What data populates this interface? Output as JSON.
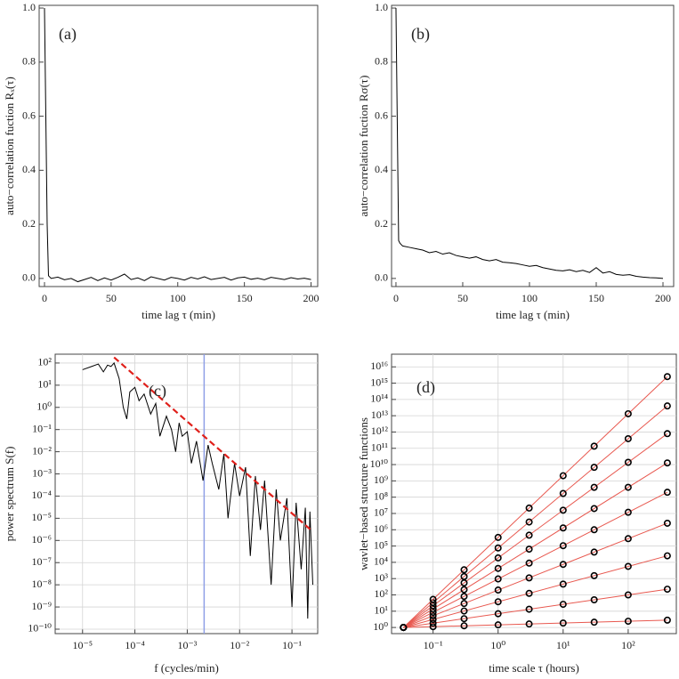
{
  "chart_data": [
    {
      "type": "line",
      "label": "(a)",
      "xlabel": "time lag τ (min)",
      "ylabel": "auto−correlation fuction Rₓ(τ)",
      "xscale": "linear",
      "yscale": "linear",
      "grid": false,
      "xlim": [
        -4,
        205
      ],
      "ylim": [
        -0.03,
        1.01
      ],
      "xticks": [
        0,
        50,
        100,
        150,
        200
      ],
      "yticks": [
        {
          "value": 0,
          "label": "0.0"
        },
        {
          "value": 0.2,
          "label": "0.2"
        },
        {
          "value": 0.4,
          "label": "0.4"
        },
        {
          "value": 0.6,
          "label": "0.6"
        },
        {
          "value": 0.8,
          "label": "0.8"
        },
        {
          "value": 1,
          "label": "1.0"
        }
      ],
      "series": [
        {
          "color": "#000000",
          "x": [
            0,
            2,
            3,
            5,
            10,
            15,
            20,
            25,
            30,
            35,
            40,
            45,
            50,
            55,
            60,
            65,
            70,
            75,
            80,
            85,
            90,
            95,
            100,
            105,
            110,
            115,
            120,
            125,
            130,
            135,
            140,
            145,
            150,
            155,
            160,
            165,
            170,
            175,
            180,
            185,
            190,
            195,
            200
          ],
          "values": [
            1.0,
            0.2,
            0.01,
            0.0,
            0.005,
            -0.005,
            0.0,
            -0.012,
            -0.004,
            0.004,
            -0.008,
            0.002,
            -0.006,
            0.004,
            0.016,
            -0.004,
            0.002,
            -0.008,
            0.006,
            0.0,
            -0.006,
            0.004,
            0.0,
            -0.006,
            0.004,
            -0.002,
            0.006,
            -0.004,
            0.0,
            0.004,
            -0.006,
            0.002,
            0.005,
            -0.003,
            0.001,
            -0.005,
            0.004,
            0.0,
            -0.004,
            0.003,
            -0.002,
            0.001,
            -0.004
          ]
        }
      ]
    },
    {
      "type": "line",
      "label": "(b)",
      "xlabel": "time lag τ (min)",
      "ylabel": "auto−correlation fuction Rσ(τ)",
      "xscale": "linear",
      "yscale": "linear",
      "grid": false,
      "xlim": [
        -3.3,
        208
      ],
      "ylim": [
        -0.03,
        1.01
      ],
      "xticks": [
        0,
        50,
        100,
        150,
        200
      ],
      "yticks": [
        {
          "value": 0,
          "label": "0.0"
        },
        {
          "value": 0.2,
          "label": "0.2"
        },
        {
          "value": 0.4,
          "label": "0.4"
        },
        {
          "value": 0.6,
          "label": "0.6"
        },
        {
          "value": 0.8,
          "label": "0.8"
        },
        {
          "value": 1,
          "label": "1.0"
        }
      ],
      "series": [
        {
          "color": "#000000",
          "x": [
            0,
            2,
            3,
            5,
            10,
            15,
            20,
            25,
            30,
            35,
            40,
            45,
            50,
            55,
            60,
            65,
            70,
            75,
            80,
            85,
            90,
            95,
            100,
            105,
            110,
            115,
            120,
            125,
            130,
            135,
            140,
            145,
            150,
            155,
            160,
            165,
            170,
            175,
            180,
            185,
            190,
            195,
            200
          ],
          "values": [
            1.0,
            0.14,
            0.13,
            0.12,
            0.115,
            0.11,
            0.105,
            0.095,
            0.1,
            0.09,
            0.095,
            0.085,
            0.08,
            0.075,
            0.08,
            0.07,
            0.065,
            0.07,
            0.06,
            0.058,
            0.055,
            0.05,
            0.045,
            0.048,
            0.04,
            0.035,
            0.03,
            0.028,
            0.032,
            0.025,
            0.03,
            0.022,
            0.04,
            0.02,
            0.025,
            0.015,
            0.012,
            0.014,
            0.008,
            0.005,
            0.003,
            0.002,
            0.0
          ]
        }
      ]
    },
    {
      "type": "line",
      "label": "(c)",
      "xlabel": "f (cycles/min)",
      "ylabel": "power spectrum S(f)",
      "xscale": "log",
      "yscale": "log",
      "grid": true,
      "xlim": [
        3e-06,
        0.31
      ],
      "ylim": [
        6.3e-11,
        250
      ],
      "xticks": [
        {
          "value": 1e-05,
          "label": "10⁻⁵"
        },
        {
          "value": 0.0001,
          "label": "10⁻⁴"
        },
        {
          "value": 0.001,
          "label": "10⁻³"
        },
        {
          "value": 0.01,
          "label": "10⁻²"
        },
        {
          "value": 0.1,
          "label": "10⁻¹"
        }
      ],
      "yticks": [
        {
          "value": 1e-10,
          "label": "10⁻¹⁰"
        },
        {
          "value": 1e-09,
          "label": "10⁻⁹"
        },
        {
          "value": 1e-08,
          "label": "10⁻⁸"
        },
        {
          "value": 1e-07,
          "label": "10⁻⁷"
        },
        {
          "value": 1e-06,
          "label": "10⁻⁶"
        },
        {
          "value": 1e-05,
          "label": "10⁻⁵"
        },
        {
          "value": 0.0001,
          "label": "10⁻⁴"
        },
        {
          "value": 0.001,
          "label": "10⁻³"
        },
        {
          "value": 0.01,
          "label": "10⁻²"
        },
        {
          "value": 0.1,
          "label": "10⁻¹"
        },
        {
          "value": 1,
          "label": "10⁰"
        },
        {
          "value": 10,
          "label": "10¹"
        },
        {
          "value": 100,
          "label": "10²"
        }
      ],
      "vline": {
        "x": 0.0021,
        "color": "#8fa0e6"
      },
      "series": [
        {
          "color": "#000000",
          "x": [
            1e-05,
            1.5e-05,
            2e-05,
            2.5e-05,
            3e-05,
            3.5e-05,
            4e-05,
            5e-05,
            6e-05,
            7e-05,
            8e-05,
            0.0001,
            0.00012,
            0.00015,
            0.0002,
            0.00025,
            0.0003,
            0.0004,
            0.0005,
            0.0006,
            0.0007,
            0.0008,
            0.001,
            0.0012,
            0.0015,
            0.002,
            0.0025,
            0.003,
            0.004,
            0.005,
            0.006,
            0.008,
            0.01,
            0.013,
            0.016,
            0.02,
            0.025,
            0.03,
            0.04,
            0.05,
            0.06,
            0.08,
            0.1,
            0.12,
            0.15,
            0.18,
            0.2,
            0.22,
            0.25
          ],
          "values": [
            50,
            70,
            90,
            40,
            80,
            70,
            100,
            20,
            1,
            0.3,
            5,
            8,
            2,
            4,
            0.5,
            1.5,
            0.05,
            0.4,
            0.1,
            0.01,
            0.2,
            0.05,
            0.08,
            0.003,
            0.03,
            0.0005,
            0.02,
            0.003,
            0.0002,
            0.008,
            1e-05,
            0.003,
            0.0001,
            0.002,
            2e-07,
            0.0008,
            3e-06,
            0.0005,
            1e-08,
            0.0002,
            1e-06,
            8e-05,
            1e-09,
            5e-05,
            5e-08,
            3e-05,
            3e-10,
            2e-05,
            1e-08
          ]
        },
        {
          "color": "#e0201b",
          "dashed": true,
          "x": [
            4e-05,
            0.25
          ],
          "values": [
            180,
            2.5e-06
          ]
        }
      ]
    },
    {
      "type": "scatter",
      "label": "(d)",
      "xlabel": "time scale τ (hours)",
      "ylabel": "wavlet−based structure functions",
      "xscale": "log",
      "yscale": "log",
      "grid": true,
      "xlim": [
        0.023,
        550
      ],
      "ylim": [
        0.42,
        6e+16
      ],
      "xticks": [
        {
          "value": 0.1,
          "label": "10⁻¹"
        },
        {
          "value": 1,
          "label": "10⁰"
        },
        {
          "value": 10,
          "label": "10¹"
        },
        {
          "value": 100,
          "label": "10²"
        }
      ],
      "yticks": [
        {
          "value": 1,
          "label": "10⁰"
        },
        {
          "value": 10,
          "label": "10¹"
        },
        {
          "value": 100,
          "label": "10²"
        },
        {
          "value": 1000.0,
          "label": "10³"
        },
        {
          "value": 10000.0,
          "label": "10⁴"
        },
        {
          "value": 100000.0,
          "label": "10⁵"
        },
        {
          "value": 1000000.0,
          "label": "10⁶"
        },
        {
          "value": 10000000.0,
          "label": "10⁷"
        },
        {
          "value": 100000000.0,
          "label": "10⁸"
        },
        {
          "value": 1000000000.0,
          "label": "10⁹"
        },
        {
          "value": 10000000000.0,
          "label": "10¹⁰"
        },
        {
          "value": 100000000000.0,
          "label": "10¹¹"
        },
        {
          "value": 1000000000000.0,
          "label": "10¹²"
        },
        {
          "value": 10000000000000.0,
          "label": "10¹³"
        },
        {
          "value": 100000000000000.0,
          "label": "10¹⁴"
        },
        {
          "value": 1000000000000000.0,
          "label": "10¹⁵"
        },
        {
          "value": 1e+16,
          "label": "10¹⁶"
        }
      ],
      "x": [
        0.035,
        0.1,
        0.3,
        1,
        3,
        10,
        30,
        100,
        400
      ],
      "fit_x": [
        0.035,
        400
      ],
      "fit_color": "#e8584f",
      "series": [
        {
          "color": "#000000",
          "values": [
            1,
            1.12,
            1.27,
            1.45,
            1.64,
            1.87,
            2.11,
            2.42,
            2.82
          ],
          "fit": [
            1,
            2.82
          ]
        },
        {
          "color": "#000000",
          "values": [
            1,
            1.83,
            3.48,
            6.98,
            13.2,
            26.4,
            50.0,
            100,
            224
          ],
          "fit": [
            1,
            224
          ]
        },
        {
          "color": "#000000",
          "values": [
            1,
            3.11,
            10.3,
            38.0,
            124,
            459,
            1520,
            5610,
            25100
          ],
          "fit": [
            1,
            25100
          ]
        },
        {
          "color": "#000000",
          "values": [
            1,
            5.21,
            29.6,
            199,
            1110,
            7450,
            42400,
            284000,
            2510000
          ],
          "fit": [
            1,
            2510000
          ]
        },
        {
          "color": "#000000",
          "values": [
            1,
            8.51,
            81.1,
            955,
            8930,
            105000,
            1000000,
            11800000,
            200000000
          ],
          "fit": [
            1,
            200000000
          ]
        },
        {
          "color": "#000000",
          "values": [
            1,
            13.5,
            210,
            4230,
            64300,
            1290000,
            20000000,
            403000000,
            12600000000.0
          ],
          "fit": [
            1,
            12600000000.0
          ]
        },
        {
          "color": "#000000",
          "values": [
            1,
            21.5,
            546,
            18700,
            461000,
            15800000,
            402000000,
            13800000000.0,
            794000000000.0
          ],
          "fit": [
            1,
            794000000000.0
          ]
        },
        {
          "color": "#000000",
          "values": [
            1,
            33.3,
            1340,
            76200,
            2980000,
            169000000,
            6810000000.0,
            389000000000.0,
            39800000000000.0
          ],
          "fit": [
            1,
            39800000000000.0
          ]
        },
        {
          "color": "#000000",
          "values": [
            1,
            53.1,
            3480,
            338000,
            21400000,
            2070000000.0,
            135000000000.0,
            13200000000000.0,
            2510000000000000.0
          ],
          "fit": [
            1,
            2510000000000000.0
          ]
        }
      ]
    }
  ]
}
